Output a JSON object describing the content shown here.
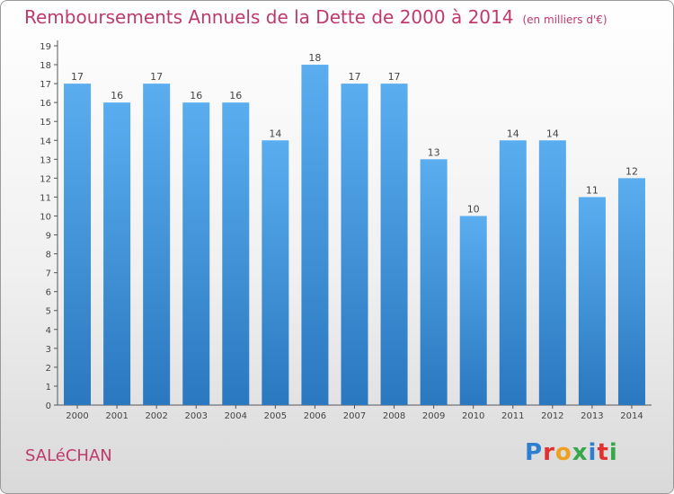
{
  "header": {
    "title": "Remboursements Annuels de la Dette de 2000 à 2014",
    "subtitle": "(en milliers d'€)"
  },
  "footer": {
    "commune": "SALéCHAN",
    "brand_letters": [
      "P",
      "r",
      "o",
      "x",
      "i",
      "t",
      "i"
    ],
    "brand_colors": [
      "#2f7fd0",
      "#e0302f",
      "#f0a020",
      "#35a84a",
      "#2f7fd0",
      "#e0302f",
      "#35a84a"
    ]
  },
  "colors": {
    "bar_top": "#5aaef0",
    "bar_bottom": "#2a78c0",
    "accent": "#c0396d"
  },
  "chart_data": {
    "type": "bar",
    "categories": [
      "2000",
      "2001",
      "2002",
      "2003",
      "2004",
      "2005",
      "2006",
      "2007",
      "2008",
      "2009",
      "2010",
      "2011",
      "2012",
      "2013",
      "2014"
    ],
    "values": [
      17,
      16,
      17,
      16,
      16,
      14,
      18,
      17,
      17,
      13,
      10,
      14,
      14,
      11,
      12
    ],
    "ylim": [
      0,
      19
    ],
    "yticks": [
      0,
      1,
      2,
      3,
      4,
      5,
      6,
      7,
      8,
      9,
      10,
      11,
      12,
      13,
      14,
      15,
      16,
      17,
      18,
      19
    ],
    "grid": false,
    "title": "Remboursements Annuels de la Dette de 2000 à 2014",
    "subtitle": "(en milliers d'€)",
    "xlabel": "",
    "ylabel": ""
  }
}
